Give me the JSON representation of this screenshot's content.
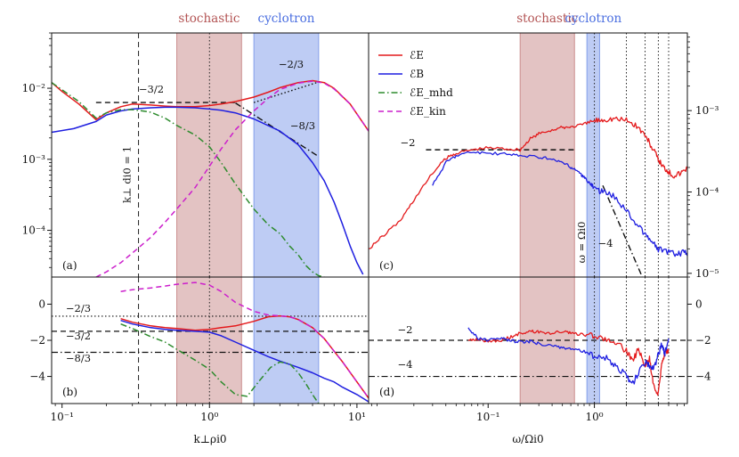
{
  "chart_data": [
    {
      "panel_id": "a",
      "panel_label": "(a)",
      "type": "line",
      "xscale": "log",
      "yscale": "log",
      "xlim": [
        0.085,
        12
      ],
      "ylim": [
        2.2e-05,
        0.06
      ],
      "xlabel": "",
      "ylabel": "",
      "yticks": [
        {
          "v": 0.0001,
          "label": "10⁻⁴"
        },
        {
          "v": 0.001,
          "label": "10⁻³"
        },
        {
          "v": 0.01,
          "label": "10⁻²"
        }
      ],
      "bands": [
        {
          "name": "stochastic",
          "x0": 0.6,
          "x1": 1.65,
          "color": "#c27a7a"
        },
        {
          "name": "cyclotron",
          "x0": 2.0,
          "x1": 5.5,
          "color": "#6f8fe6"
        }
      ],
      "vlines": [
        {
          "x": 0.33,
          "style": "dashed"
        },
        {
          "x": 1.0,
          "style": "dotted"
        }
      ],
      "vline_label": "k⊥ di0 = 1",
      "series": [
        {
          "name": "E_E",
          "color": "#e41a1c",
          "style": "solid",
          "x": [
            0.085,
            0.1,
            0.13,
            0.17,
            0.2,
            0.25,
            0.3,
            0.4,
            0.5,
            0.6,
            0.8,
            1.0,
            1.2,
            1.5,
            2.0,
            2.5,
            3.0,
            4.0,
            5.0,
            6.0,
            7.0,
            9.0,
            12
          ],
          "y": [
            0.012,
            0.009,
            0.006,
            0.0036,
            0.0045,
            0.0055,
            0.006,
            0.0058,
            0.0056,
            0.0055,
            0.0055,
            0.0057,
            0.006,
            0.0065,
            0.0075,
            0.0088,
            0.0102,
            0.012,
            0.0128,
            0.012,
            0.01,
            0.006,
            0.0025
          ]
        },
        {
          "name": "E_B",
          "color": "#1f1fe0",
          "style": "solid",
          "x": [
            0.085,
            0.12,
            0.17,
            0.2,
            0.25,
            0.3,
            0.4,
            0.5,
            0.6,
            0.8,
            1.0,
            1.2,
            1.5,
            2.0,
            3.0,
            4.0,
            5.0,
            6.0,
            7.0,
            8.0,
            9.0,
            10.0,
            11.0
          ],
          "y": [
            0.0024,
            0.0027,
            0.0034,
            0.0042,
            0.0048,
            0.0051,
            0.0053,
            0.0054,
            0.0054,
            0.0053,
            0.0051,
            0.0049,
            0.0045,
            0.0037,
            0.0025,
            0.0016,
            0.0009,
            0.0005,
            0.00025,
            0.00012,
            6e-05,
            3.5e-05,
            2.4e-05
          ]
        },
        {
          "name": "E_Emhd",
          "color": "#2e8b2e",
          "style": "dashdot",
          "x": [
            0.085,
            0.1,
            0.13,
            0.17,
            0.2,
            0.25,
            0.3,
            0.35,
            0.4,
            0.5,
            0.6,
            0.8,
            1.0,
            1.2,
            1.5,
            2.0,
            2.5,
            3.0,
            3.5,
            4.0,
            4.5,
            5.0,
            5.5,
            6.0
          ],
          "y": [
            0.012,
            0.0095,
            0.0065,
            0.0038,
            0.0045,
            0.005,
            0.005,
            0.0048,
            0.0046,
            0.0038,
            0.003,
            0.0022,
            0.0015,
            0.0009,
            0.00045,
            0.0002,
            0.00012,
            9e-05,
            6e-05,
            4.5e-05,
            3.2e-05,
            2.6e-05,
            2.3e-05,
            2.2e-05
          ]
        },
        {
          "name": "E_Ekin",
          "color": "#cc1fcc",
          "style": "dashed",
          "x": [
            0.17,
            0.2,
            0.25,
            0.3,
            0.4,
            0.5,
            0.6,
            0.8,
            1.0,
            1.2,
            1.5,
            2.0,
            2.5,
            3.0,
            4.0,
            5.0,
            6.0,
            7.0,
            9.0,
            12
          ],
          "y": [
            2.2e-05,
            2.6e-05,
            3.5e-05,
            4.8e-05,
            8e-05,
            0.00013,
            0.0002,
            0.0004,
            0.0008,
            0.0014,
            0.0026,
            0.0048,
            0.0072,
            0.0096,
            0.0118,
            0.0126,
            0.0118,
            0.0098,
            0.006,
            0.0025
          ]
        }
      ],
      "refs": [
        {
          "x": [
            0.17,
            1.5
          ],
          "y": [
            0.0063,
            0.0063
          ],
          "style": "dashed",
          "label": "−3/2"
        },
        {
          "x": [
            2.0,
            5.6
          ],
          "y": [
            0.0063,
            0.0124
          ],
          "style": "dotted",
          "label": "−2/3"
        },
        {
          "x": [
            1.5,
            5.4
          ],
          "y": [
            0.0062,
            0.00112
          ],
          "style": "dashdot",
          "label": "−8/3"
        }
      ]
    },
    {
      "panel_id": "b",
      "panel_label": "(b)",
      "type": "line",
      "xscale": "log",
      "yscale": "linear",
      "xlim": [
        0.085,
        12
      ],
      "ylim": [
        -5.5,
        1.5
      ],
      "xlabel": "k⊥ρi0",
      "xticks": [
        {
          "v": 0.1,
          "label": "10⁻¹"
        },
        {
          "v": 1,
          "label": "10⁰"
        },
        {
          "v": 10,
          "label": "10¹"
        }
      ],
      "yticks": [
        {
          "v": -4,
          "label": "−4"
        },
        {
          "v": -2,
          "label": "−2"
        },
        {
          "v": 0,
          "label": "0"
        }
      ],
      "bands": [
        {
          "name": "stochastic",
          "x0": 0.6,
          "x1": 1.65,
          "color": "#c27a7a"
        },
        {
          "name": "cyclotron",
          "x0": 2.0,
          "x1": 5.5,
          "color": "#6f8fe6"
        }
      ],
      "vlines": [
        {
          "x": 0.33,
          "style": "dashed"
        },
        {
          "x": 1.0,
          "style": "dotted"
        }
      ],
      "hlines": [
        {
          "y": -0.667,
          "style": "dotted",
          "label": "−2/3"
        },
        {
          "y": -1.5,
          "style": "dashed",
          "label": "−3/2"
        },
        {
          "y": -2.667,
          "style": "dashdot",
          "label": "−8/3"
        }
      ],
      "series": [
        {
          "name": "E_E",
          "color": "#e41a1c",
          "style": "solid",
          "x": [
            0.25,
            0.3,
            0.4,
            0.5,
            0.6,
            0.8,
            1.0,
            1.2,
            1.5,
            2.0,
            2.5,
            3.0,
            3.5,
            4.0,
            5.0,
            6.0,
            7.0,
            8.0,
            10.0,
            12
          ],
          "y": [
            -0.8,
            -1.0,
            -1.2,
            -1.3,
            -1.35,
            -1.45,
            -1.4,
            -1.3,
            -1.2,
            -0.95,
            -0.7,
            -0.65,
            -0.7,
            -0.85,
            -1.3,
            -1.9,
            -2.6,
            -3.2,
            -4.3,
            -5.2
          ]
        },
        {
          "name": "E_B",
          "color": "#1f1fe0",
          "style": "solid",
          "x": [
            0.25,
            0.3,
            0.4,
            0.5,
            0.6,
            0.8,
            1.0,
            1.2,
            1.5,
            2.0,
            2.5,
            3.0,
            4.0,
            5.0,
            6.0,
            7.0,
            8.0,
            10.0,
            12
          ],
          "y": [
            -0.9,
            -1.1,
            -1.3,
            -1.4,
            -1.45,
            -1.5,
            -1.55,
            -1.75,
            -2.1,
            -2.55,
            -2.9,
            -3.15,
            -3.5,
            -3.8,
            -4.1,
            -4.3,
            -4.6,
            -5.0,
            -5.4
          ]
        },
        {
          "name": "E_Emhd",
          "color": "#2e8b2e",
          "style": "dashdot",
          "x": [
            0.25,
            0.3,
            0.4,
            0.5,
            0.6,
            0.8,
            1.0,
            1.2,
            1.5,
            1.8,
            2.2,
            2.6,
            3.0,
            3.5,
            4.0,
            4.5,
            5.0,
            5.5
          ],
          "y": [
            -1.1,
            -1.35,
            -1.8,
            -2.1,
            -2.5,
            -3.1,
            -3.6,
            -4.3,
            -5.0,
            -5.1,
            -4.2,
            -3.5,
            -3.2,
            -3.3,
            -3.8,
            -4.4,
            -5.0,
            -5.5
          ]
        },
        {
          "name": "E_Ekin",
          "color": "#cc1fcc",
          "style": "dashed",
          "x": [
            0.25,
            0.3,
            0.4,
            0.5,
            0.6,
            0.8,
            1.0,
            1.2,
            1.5,
            2.0,
            2.5,
            3.0,
            3.5,
            4.0,
            5.0,
            6.0,
            7.0,
            8.0,
            10.0,
            12
          ],
          "y": [
            0.7,
            0.8,
            0.9,
            1.0,
            1.1,
            1.2,
            1.05,
            0.7,
            0.1,
            -0.4,
            -0.6,
            -0.65,
            -0.7,
            -0.85,
            -1.3,
            -1.9,
            -2.6,
            -3.2,
            -4.3,
            -5.2
          ]
        }
      ]
    },
    {
      "panel_id": "c",
      "panel_label": "(c)",
      "type": "line",
      "xscale": "log",
      "yscale": "log",
      "xlim": [
        0.0075,
        7.5
      ],
      "ylim": [
        9e-06,
        0.009
      ],
      "yaxis_side": "right",
      "yticks": [
        {
          "v": 1e-05,
          "label": "10⁻⁵"
        },
        {
          "v": 0.0001,
          "label": "10⁻⁴"
        },
        {
          "v": 0.001,
          "label": "10⁻³"
        }
      ],
      "bands": [
        {
          "name": "stochastic",
          "x0": 0.2,
          "x1": 0.65,
          "color": "#c27a7a"
        },
        {
          "name": "cyclotron",
          "x0": 0.85,
          "x1": 1.12,
          "color": "#6f8fe6"
        }
      ],
      "vlines": [
        {
          "x": 1.0,
          "style": "dotted"
        },
        {
          "x": 2.0,
          "style": "dotted"
        },
        {
          "x": 3.0,
          "style": "dotted"
        },
        {
          "x": 4.0,
          "style": "dotted"
        },
        {
          "x": 5.0,
          "style": "dotted"
        }
      ],
      "vline_label": "ω = Ωi0",
      "series": [
        {
          "name": "E_E",
          "color": "#e41a1c",
          "style": "solid",
          "x": [
            0.0075,
            0.01,
            0.015,
            0.02,
            0.03,
            0.04,
            0.05,
            0.07,
            0.1,
            0.15,
            0.2,
            0.25,
            0.3,
            0.4,
            0.5,
            0.6,
            0.8,
            1.0,
            1.2,
            1.5,
            2.0,
            2.5,
            3.0,
            3.5,
            4.0,
            4.5,
            5.0,
            5.5,
            6.5,
            7.5
          ],
          "y": [
            2e-05,
            2.8e-05,
            4.5e-05,
            8e-05,
            0.00017,
            0.00026,
            0.0003,
            0.00033,
            0.00035,
            0.00034,
            0.00033,
            0.00045,
            0.00052,
            0.00058,
            0.00062,
            0.00063,
            0.00068,
            0.00075,
            0.00078,
            0.0008,
            0.00076,
            0.00065,
            0.0005,
            0.00035,
            0.00025,
            0.0002,
            0.00018,
            0.00016,
            0.00017,
            0.0002
          ]
        },
        {
          "name": "E_B",
          "color": "#1f1fe0",
          "style": "solid",
          "x": [
            0.03,
            0.04,
            0.05,
            0.07,
            0.1,
            0.15,
            0.2,
            0.3,
            0.4,
            0.5,
            0.6,
            0.7,
            0.8,
            0.9,
            1.0,
            1.2,
            1.5,
            2.0,
            2.5,
            3.0,
            3.5,
            4.0,
            5.0,
            6.0,
            7.0,
            7.5
          ],
          "y": [
            0.00012,
            0.00023,
            0.00028,
            0.00031,
            0.0003,
            0.00029,
            0.00028,
            0.00027,
            0.00025,
            0.00023,
            0.0002,
            0.00018,
            0.00015,
            0.00013,
            0.00011,
            0.0001,
            9e-05,
            6e-05,
            4e-05,
            3e-05,
            2.4e-05,
            2e-05,
            1.8e-05,
            1.7e-05,
            1.8e-05,
            1.8e-05
          ]
        }
      ],
      "refs": [
        {
          "x": [
            0.026,
            0.65
          ],
          "y": [
            0.00033,
            0.00033
          ],
          "style": "dashed",
          "label": "−2"
        },
        {
          "x": [
            1.2,
            3.0
          ],
          "y": [
            0.00012,
            7.5e-06
          ],
          "style": "dashdot",
          "label": "−4"
        }
      ]
    },
    {
      "panel_id": "d",
      "panel_label": "(d)",
      "type": "line",
      "xscale": "log",
      "yscale": "linear",
      "xlim": [
        0.0075,
        7.5
      ],
      "ylim": [
        -5.5,
        1.5
      ],
      "xlabel": "ω/Ωi0",
      "yaxis_side": "right",
      "xticks": [
        {
          "v": 0.1,
          "label": "10⁻¹"
        },
        {
          "v": 1,
          "label": "10⁰"
        }
      ],
      "yticks": [
        {
          "v": -4,
          "label": "−4"
        },
        {
          "v": -2,
          "label": "−2"
        },
        {
          "v": 0,
          "label": "0"
        }
      ],
      "bands": [
        {
          "name": "stochastic",
          "x0": 0.2,
          "x1": 0.65,
          "color": "#c27a7a"
        },
        {
          "name": "cyclotron",
          "x0": 0.85,
          "x1": 1.12,
          "color": "#6f8fe6"
        }
      ],
      "vlines": [
        {
          "x": 1.0,
          "style": "dotted"
        },
        {
          "x": 2.0,
          "style": "dotted"
        },
        {
          "x": 3.0,
          "style": "dotted"
        },
        {
          "x": 4.0,
          "style": "dotted"
        },
        {
          "x": 5.0,
          "style": "dotted"
        }
      ],
      "hlines": [
        {
          "y": -2,
          "style": "dashed",
          "label": "−2"
        },
        {
          "y": -4,
          "style": "dashdot",
          "label": "−4"
        }
      ],
      "series": [
        {
          "name": "E_E",
          "color": "#e41a1c",
          "style": "solid",
          "x": [
            0.065,
            0.08,
            0.1,
            0.13,
            0.16,
            0.2,
            0.25,
            0.3,
            0.4,
            0.5,
            0.6,
            0.8,
            1.0,
            1.3,
            1.6,
            2.0,
            2.3,
            2.6,
            3.0,
            3.3,
            3.6,
            4.0,
            4.3,
            4.6,
            5.0
          ],
          "y": [
            -2.0,
            -1.95,
            -2.05,
            -2.0,
            -1.85,
            -1.6,
            -1.5,
            -1.55,
            -1.6,
            -1.5,
            -1.6,
            -1.7,
            -1.75,
            -1.9,
            -2.1,
            -2.6,
            -3.2,
            -2.4,
            -3.5,
            -3.0,
            -4.5,
            -5.0,
            -3.2,
            -2.7,
            -2.5
          ]
        },
        {
          "name": "E_B",
          "color": "#1f1fe0",
          "style": "solid",
          "x": [
            0.065,
            0.08,
            0.1,
            0.13,
            0.16,
            0.2,
            0.25,
            0.3,
            0.4,
            0.5,
            0.6,
            0.8,
            1.0,
            1.3,
            1.6,
            2.0,
            2.3,
            2.6,
            3.0,
            3.3,
            3.6,
            4.0,
            4.3,
            4.6,
            5.0
          ],
          "y": [
            -1.3,
            -1.9,
            -2.0,
            -1.9,
            -2.0,
            -2.1,
            -2.05,
            -2.2,
            -2.3,
            -2.4,
            -2.5,
            -2.6,
            -2.9,
            -3.0,
            -3.4,
            -4.0,
            -4.4,
            -3.8,
            -3.2,
            -3.4,
            -3.6,
            -2.8,
            -2.2,
            -2.8,
            -1.9
          ]
        }
      ]
    }
  ],
  "legend": {
    "placement": "top-left of panel (c)",
    "entries": [
      {
        "label": "ℰE",
        "name": "E_E",
        "color": "#e41a1c",
        "style": "solid"
      },
      {
        "label": "ℰB",
        "name": "E_B",
        "color": "#1f1fe0",
        "style": "solid"
      },
      {
        "label": "ℰE_mhd",
        "name": "E_Emhd",
        "color": "#2e8b2e",
        "style": "dashdot"
      },
      {
        "label": "ℰE_kin",
        "name": "E_Ekin",
        "color": "#cc1fcc",
        "style": "dashed"
      }
    ]
  }
}
